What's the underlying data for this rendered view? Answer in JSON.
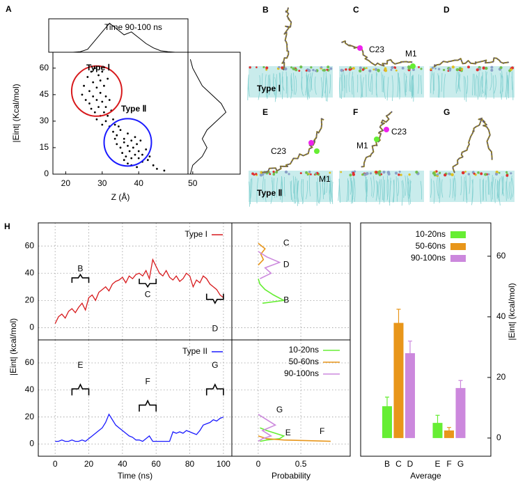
{
  "chart_data": [
    {
      "type": "scatter",
      "panel_label": "A",
      "xlabel": "Z (Å)",
      "ylabel": "|Eint| (Kcal/mol)",
      "xlim": [
        16.5,
        53.5
      ],
      "ylim": [
        0,
        69
      ],
      "xticks": [
        20,
        30,
        40
      ],
      "yticks": [
        0,
        15,
        30,
        45,
        60
      ],
      "color": "#000000",
      "x": [
        25,
        26,
        27,
        28,
        29,
        26.5,
        27.5,
        28.5,
        29.5,
        30,
        25.5,
        26.5,
        27.5,
        28.5,
        29.5,
        30.5,
        31,
        27,
        28,
        29,
        30,
        31,
        32,
        28.5,
        29.5,
        30.5,
        31.5,
        32.5,
        30,
        31,
        32,
        33,
        33.5,
        24.5,
        31.5,
        33,
        34,
        35,
        36,
        37,
        34,
        35,
        36,
        37,
        38,
        39,
        35.5,
        36.5,
        37.5,
        38.5,
        39.5,
        40,
        36,
        37,
        38,
        39,
        40,
        41,
        42,
        38,
        39.5,
        41,
        43,
        44,
        45,
        47,
        34.5,
        33.5,
        40.5,
        42.5
      ],
      "values": [
        50,
        55,
        58,
        60,
        56,
        47,
        52,
        49,
        53,
        58,
        42,
        40,
        44,
        42,
        46,
        50,
        44,
        37,
        35,
        38,
        41,
        38,
        42,
        31,
        33,
        35,
        33,
        36,
        28,
        30,
        27,
        31,
        28,
        45,
        54,
        24,
        22,
        25,
        20,
        23,
        17,
        15,
        18,
        16,
        19,
        21,
        12,
        10,
        13,
        15,
        17,
        13,
        8,
        6,
        9,
        11,
        9,
        11,
        14,
        5,
        4,
        7,
        10,
        5,
        3,
        2,
        27,
        20,
        19,
        8
      ],
      "annotations": [
        {
          "text": "Type Ⅰ",
          "color": "#d7191c"
        },
        {
          "text": "Type Ⅱ",
          "color": "#1a1aff"
        }
      ],
      "top_marginal": {
        "title": "Time 90-100 ns",
        "ylim": [
          0,
          1.15
        ],
        "x": [
          22,
          24,
          26,
          28,
          30,
          32,
          34,
          36,
          38,
          40,
          42,
          44,
          46,
          48,
          50
        ],
        "values": [
          0,
          0.02,
          0.1,
          0.4,
          0.7,
          1.0,
          0.8,
          0.6,
          0.7,
          0.5,
          0.3,
          0.15,
          0.05,
          0.02,
          0
        ]
      },
      "right_marginal": {
        "xlim": [
          49,
          60
        ],
        "xticks": [
          50
        ],
        "y": [
          0,
          5,
          10,
          15,
          20,
          25,
          30,
          35,
          40,
          45,
          50,
          55,
          60,
          65
        ],
        "values": [
          49.5,
          50,
          52,
          53,
          52,
          53,
          55,
          57,
          56,
          54,
          52,
          51,
          50,
          49.5
        ]
      }
    },
    {
      "type": "line",
      "panel_label": "H",
      "xlabel": "Time (ns)",
      "ylabel": "|Eint| (kcal/mol)",
      "xlim": [
        -10,
        105
      ],
      "xticks": [
        0,
        20,
        40,
        60,
        80,
        100
      ],
      "ylim": [
        -9,
        77
      ],
      "yticks": [
        0,
        20,
        40,
        60
      ],
      "grid": true,
      "x": [
        0,
        2,
        4,
        6,
        8,
        10,
        12,
        14,
        16,
        18,
        20,
        22,
        24,
        26,
        28,
        30,
        32,
        34,
        36,
        38,
        40,
        42,
        44,
        46,
        48,
        50,
        52,
        54,
        56,
        58,
        60,
        62,
        64,
        66,
        68,
        70,
        72,
        74,
        76,
        78,
        80,
        82,
        84,
        86,
        88,
        90,
        92,
        94,
        96,
        98,
        100
      ],
      "series": [
        {
          "name": "Type I",
          "color": "#d7191c",
          "values": [
            3,
            8,
            10,
            7,
            12,
            14,
            11,
            15,
            18,
            13,
            22,
            24,
            20,
            26,
            28,
            30,
            27,
            32,
            34,
            35,
            37,
            33,
            38,
            36,
            39,
            40,
            38,
            42,
            36,
            50,
            45,
            40,
            38,
            42,
            37,
            35,
            38,
            34,
            36,
            40,
            38,
            30,
            35,
            33,
            38,
            36,
            32,
            30,
            28,
            24,
            22
          ]
        },
        {
          "name": "Type II",
          "color": "#1a1aff",
          "values": [
            2,
            2,
            3,
            2,
            2,
            3,
            2,
            2,
            3,
            2,
            4,
            6,
            8,
            10,
            12,
            16,
            22,
            18,
            14,
            12,
            10,
            8,
            6,
            5,
            3,
            3,
            2,
            4,
            6,
            2,
            2,
            2,
            2,
            2,
            2,
            9,
            8,
            9,
            8,
            10,
            9,
            8,
            7,
            10,
            14,
            15,
            16,
            18,
            17,
            19,
            20
          ]
        }
      ],
      "annotations": [
        {
          "text": "B",
          "color": "#55cc33"
        },
        {
          "text": "C",
          "color": "#e8961a"
        },
        {
          "text": "D",
          "color": "#b399d9"
        },
        {
          "text": "E",
          "color": "#55cc33"
        },
        {
          "text": "F",
          "color": "#e8961a"
        },
        {
          "text": "G",
          "color": "#b399d9"
        }
      ]
    },
    {
      "type": "profile",
      "xlabel": "Probability",
      "xlim": [
        -0.31,
        1.08
      ],
      "xticks": [
        0,
        0.5
      ],
      "ylim": [
        -9,
        77
      ],
      "yticks": [
        0,
        20,
        40,
        60
      ],
      "grid": true,
      "legend": "upper right",
      "series": [
        {
          "name": "10-20ns",
          "color": "#66ee33",
          "panels": [
            {
              "x": [
                0,
                0.02,
                0.08,
                0.18,
                0.3,
                0.05
              ],
              "values": [
                36,
                32,
                28,
                24,
                20,
                18
              ]
            },
            {
              "x": [
                0.02,
                0.1,
                0.2,
                0.3,
                0.25,
                0.1,
                0.02
              ],
              "values": [
                12,
                10,
                8,
                6,
                4,
                3,
                2
              ]
            }
          ]
        },
        {
          "name": "50-60ns",
          "color": "#e8961a",
          "panels": [
            {
              "x": [
                0,
                0.08,
                0.03,
                0.06,
                0
              ],
              "values": [
                62,
                58,
                54,
                50,
                46
              ]
            },
            {
              "x": [
                0,
                0.1,
                0.3,
                0.6,
                0.85
              ],
              "values": [
                6,
                4,
                3,
                2.5,
                2
              ]
            }
          ]
        },
        {
          "name": "90-100ns",
          "color": "#cc88dd",
          "panels": [
            {
              "x": [
                0,
                0.1,
                0.25,
                0.08,
                0.15,
                0.02
              ],
              "values": [
                56,
                52,
                48,
                44,
                40,
                36
              ]
            },
            {
              "x": [
                0,
                0.1,
                0.2,
                0.05,
                0.15,
                0.05,
                0
              ],
              "values": [
                22,
                18,
                14,
                10,
                6,
                4,
                2
              ]
            }
          ]
        }
      ],
      "annotations": [
        {
          "text": "C",
          "color": "#e8961a"
        },
        {
          "text": "D",
          "color": "#b399d9"
        },
        {
          "text": "B",
          "color": "#55cc33"
        },
        {
          "text": "G",
          "color": "#b399d9"
        },
        {
          "text": "E",
          "color": "#55cc33"
        },
        {
          "text": "F",
          "color": "#e8961a"
        }
      ]
    },
    {
      "type": "bar",
      "xlabel": "Average",
      "ylabel": "|Eint| (kcal/mol)",
      "categories": [
        "B",
        "C",
        "D",
        "E",
        "F",
        "G"
      ],
      "ylim": [
        -6,
        71
      ],
      "yticks": [
        0,
        20,
        40,
        60
      ],
      "legend": "upper left",
      "series": [
        {
          "name": "10-20ns",
          "color": "#66ee33",
          "values": [
            10.5,
            null,
            null,
            5,
            null,
            null
          ],
          "errors": [
            3,
            null,
            null,
            2.5,
            null,
            null
          ]
        },
        {
          "name": "50-60ns",
          "color": "#e8961a",
          "values": [
            null,
            38,
            null,
            null,
            2.5,
            null
          ],
          "errors": [
            null,
            4.5,
            null,
            null,
            1,
            null
          ]
        },
        {
          "name": "90-100ns",
          "color": "#cc88dd",
          "values": [
            null,
            null,
            28,
            null,
            null,
            16.5
          ],
          "errors": [
            null,
            null,
            4,
            null,
            null,
            2.5
          ]
        }
      ]
    }
  ],
  "snapshots": [
    {
      "label": "B",
      "type_label": "Type Ⅰ",
      "type_color": "#d7191c"
    },
    {
      "label": "C",
      "annotations": [
        "C23",
        "M1"
      ]
    },
    {
      "label": "D"
    },
    {
      "label": "E",
      "type_label": "Type Ⅱ",
      "type_color": "#1a1aff",
      "annotations": [
        "C23",
        "M1"
      ]
    },
    {
      "label": "F",
      "annotations": [
        "C23",
        "M1"
      ]
    },
    {
      "label": "G"
    }
  ]
}
